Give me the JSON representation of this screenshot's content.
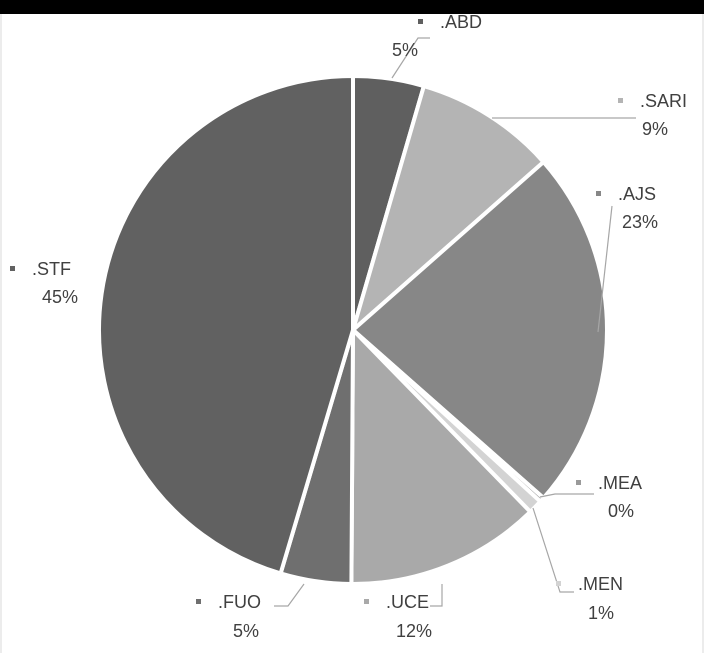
{
  "chart_data": {
    "type": "pie",
    "title": "",
    "slices": [
      {
        "name": ".ABD",
        "percent_label": "5%",
        "value": 4.5,
        "color": "#5f5f5f"
      },
      {
        "name": ".SARI",
        "percent_label": "9%",
        "value": 9.0,
        "color": "#b4b4b4"
      },
      {
        "name": ".AJS",
        "percent_label": "23%",
        "value": 23.0,
        "color": "#878787"
      },
      {
        "name": ".MEA",
        "percent_label": "0%",
        "value": 0.3,
        "color": "#9a9a9a"
      },
      {
        "name": ".MEN",
        "percent_label": "1%",
        "value": 0.9,
        "color": "#d3d3d3"
      },
      {
        "name": ".UCE",
        "percent_label": "12%",
        "value": 12.4,
        "color": "#a9a9a9"
      },
      {
        "name": ".FUO",
        "percent_label": "5%",
        "value": 4.5,
        "color": "#6f6f6f"
      },
      {
        "name": ".STF",
        "percent_label": "45%",
        "value": 45.4,
        "color": "#616161"
      }
    ]
  }
}
